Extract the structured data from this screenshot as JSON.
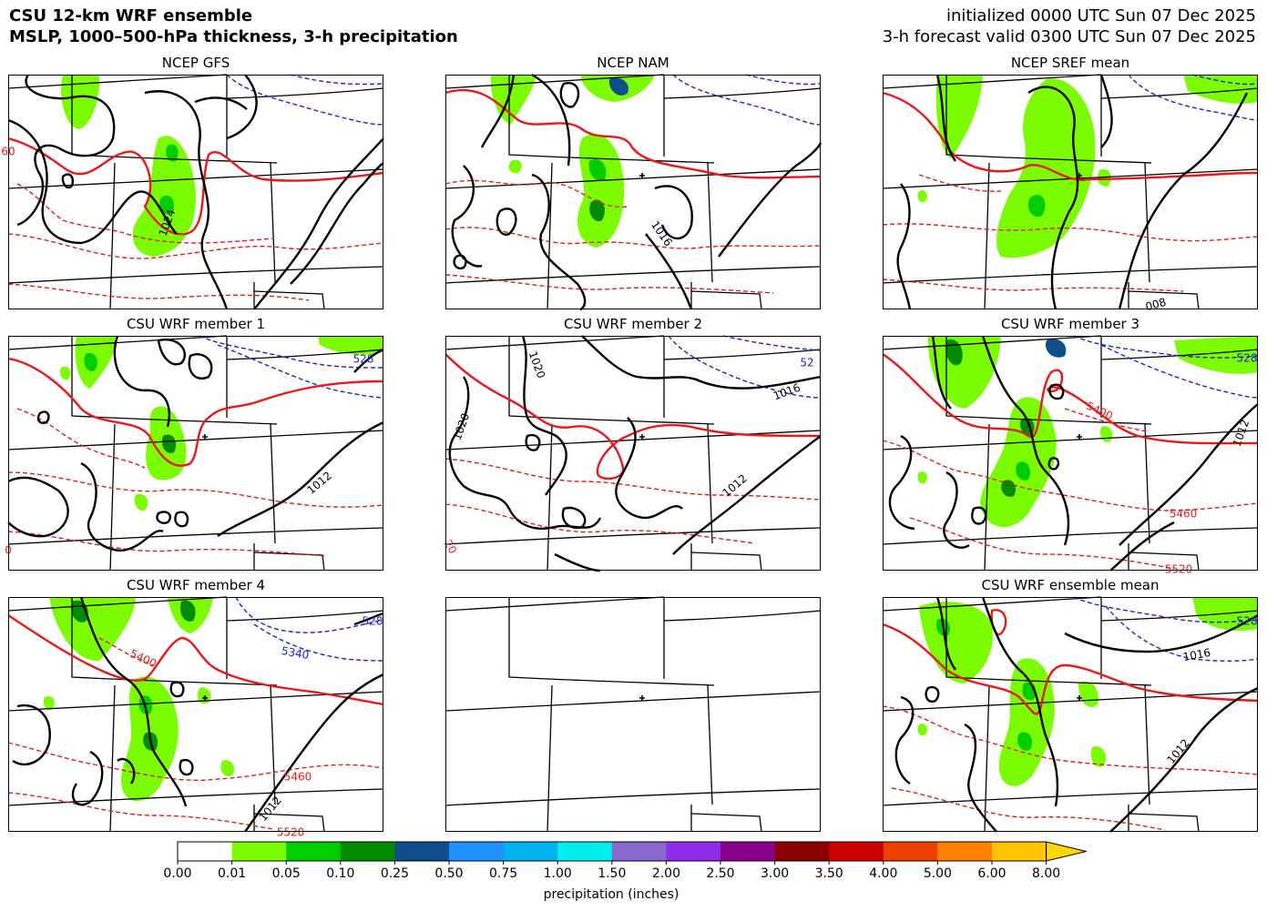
{
  "header": {
    "title_line1": "CSU 12-km WRF ensemble",
    "title_line2": "MSLP, 1000–500-hPa thickness, 3-h precipitation",
    "init_line": "initialized 0000 UTC Sun 07 Dec 2025",
    "valid_line": "3-h forecast valid 0300 UTC Sun 07 Dec 2025"
  },
  "panels": [
    {
      "title": "NCEP GFS",
      "contour_labels": [
        {
          "text": "1024",
          "kind": "mslp"
        },
        {
          "text": "60",
          "kind": "thick"
        }
      ]
    },
    {
      "title": "NCEP NAM",
      "contour_labels": [
        {
          "text": "1016",
          "kind": "mslp"
        }
      ]
    },
    {
      "title": "NCEP SREF mean",
      "contour_labels": [
        {
          "text": "008",
          "kind": "mslp"
        }
      ]
    },
    {
      "title": "CSU WRF member 1",
      "contour_labels": [
        {
          "text": "1012",
          "kind": "mslp"
        },
        {
          "text": "528",
          "kind": "cold"
        },
        {
          "text": "0",
          "kind": "thick"
        }
      ]
    },
    {
      "title": "CSU WRF member 2",
      "contour_labels": [
        {
          "text": "1020",
          "kind": "mslp"
        },
        {
          "text": "1020",
          "kind": "mslp"
        },
        {
          "text": "1016",
          "kind": "mslp"
        },
        {
          "text": "1012",
          "kind": "mslp"
        },
        {
          "text": "52",
          "kind": "cold"
        },
        {
          "text": "20",
          "kind": "thick"
        }
      ]
    },
    {
      "title": "CSU WRF member 3",
      "contour_labels": [
        {
          "text": "5400",
          "kind": "thick"
        },
        {
          "text": "5460",
          "kind": "thick"
        },
        {
          "text": "5520",
          "kind": "thick"
        },
        {
          "text": "1012",
          "kind": "mslp"
        },
        {
          "text": "528",
          "kind": "cold"
        }
      ]
    },
    {
      "title": "CSU WRF member 4",
      "contour_labels": [
        {
          "text": "5400",
          "kind": "thick"
        },
        {
          "text": "5460",
          "kind": "thick"
        },
        {
          "text": "5520",
          "kind": "thick"
        },
        {
          "text": "5340",
          "kind": "cold"
        },
        {
          "text": "528",
          "kind": "cold"
        },
        {
          "text": "1012",
          "kind": "mslp"
        }
      ]
    },
    {
      "title": "",
      "contour_labels": []
    },
    {
      "title": "CSU WRF ensemble mean",
      "contour_labels": [
        {
          "text": "1016",
          "kind": "mslp"
        },
        {
          "text": "1012",
          "kind": "mslp"
        },
        {
          "text": "528",
          "kind": "cold"
        }
      ]
    }
  ],
  "colorbar": {
    "label": "precipitation (inches)",
    "ticks": [
      "0.00",
      "0.01",
      "0.05",
      "0.10",
      "0.25",
      "0.50",
      "0.75",
      "1.00",
      "1.50",
      "2.00",
      "2.50",
      "3.00",
      "3.50",
      "4.00",
      "5.00",
      "6.00",
      "8.00"
    ],
    "colors": [
      "#ffffff",
      "#7cfc00",
      "#00cd00",
      "#008b00",
      "#104e8b",
      "#1e90ff",
      "#00b2ee",
      "#00eeee",
      "#8968cd",
      "#912cee",
      "#8b008b",
      "#8b0000",
      "#cd0000",
      "#ee4000",
      "#ff7f00",
      "#ffc400"
    ],
    "extend_color": "#ffd700"
  },
  "colors": {
    "mslp": "#000000",
    "thickness_warm": "#e8191b",
    "thickness_cold": "#1a23d8",
    "precip_light": "#7cfc00",
    "precip_mid": "#00cd00",
    "precip_heavy": "#008b00"
  }
}
